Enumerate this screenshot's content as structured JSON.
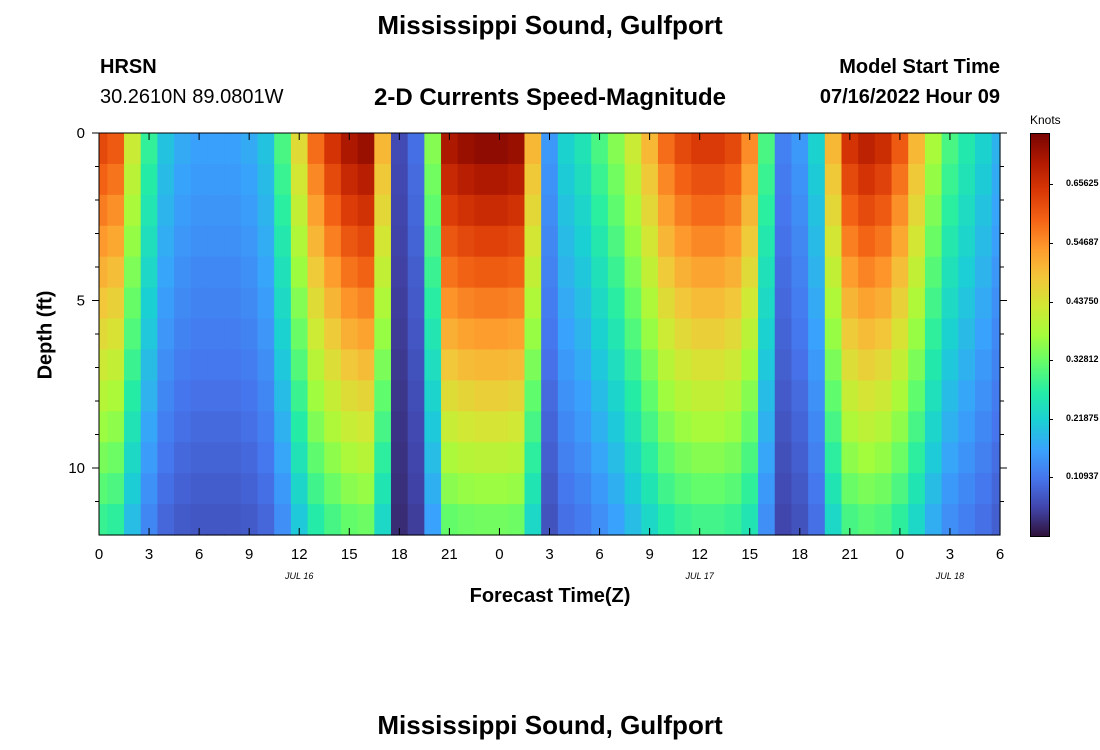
{
  "header": {
    "title": "Mississippi Sound, Gulfport",
    "station": "HRSN",
    "coords": "30.2610N  89.0801W",
    "subtitle": "2-D Currents Speed-Magnitude",
    "model_label": "Model Start Time",
    "model_time": "07/16/2022 Hour 09"
  },
  "footer": {
    "title": "Mississippi Sound, Gulfport"
  },
  "colorbar": {
    "unit": "Knots",
    "ticks": [
      {
        "value": 0.65625,
        "label": "0.65625"
      },
      {
        "value": 0.54687,
        "label": "0.54687"
      },
      {
        "value": 0.4375,
        "label": "0.43750"
      },
      {
        "value": 0.32812,
        "label": "0.32812"
      },
      {
        "value": 0.21875,
        "label": "0.21875"
      },
      {
        "value": 0.10937,
        "label": "0.10937"
      }
    ],
    "range": [
      0,
      0.75
    ],
    "colors": [
      "#30123b",
      "#4145ab",
      "#4675ed",
      "#39a2fc",
      "#1bcfd4",
      "#24eca6",
      "#61fc6c",
      "#a4fc3b",
      "#d1e834",
      "#f3c63a",
      "#fe9b2d",
      "#f36315",
      "#d93806",
      "#b11901",
      "#7a0402"
    ]
  },
  "chart_data": {
    "type": "heatmap",
    "title": "2-D Currents Speed-Magnitude",
    "xlabel": "Forecast Time(Z)",
    "ylabel": "Depth (ft)",
    "x_ticks": [
      "0",
      "3",
      "6",
      "9",
      "12",
      "15",
      "18",
      "21",
      "0",
      "3",
      "6",
      "9",
      "12",
      "15",
      "18",
      "21",
      "0",
      "3",
      "6"
    ],
    "y_ticks": [
      "0",
      "5",
      "10"
    ],
    "date_labels": [
      {
        "label": "JUL 16",
        "tick_index": 4
      },
      {
        "label": "JUL 17",
        "tick_index": 12
      },
      {
        "label": "JUL 18",
        "tick_index": 17
      }
    ],
    "ylim": [
      0,
      12
    ],
    "zlabel": "Knots",
    "zlim": [
      0,
      0.75
    ],
    "grid": false,
    "hours_from_start": [
      0,
      1,
      2,
      3,
      4,
      5,
      6,
      7,
      8,
      9,
      10,
      11,
      12,
      13,
      14,
      15,
      16,
      17,
      18,
      19,
      20,
      21,
      22,
      23,
      24,
      25,
      26,
      27,
      28,
      29,
      30,
      31,
      32,
      33,
      34,
      35,
      36,
      37,
      38,
      39,
      40,
      41,
      42,
      43,
      44,
      45,
      46,
      47,
      48,
      49,
      50,
      51,
      52,
      53,
      54
    ],
    "depths_ft": [
      0,
      1,
      2,
      3,
      4,
      5,
      6,
      7,
      8,
      9,
      10,
      11,
      12
    ],
    "surface_speed_knots": [
      0.62,
      0.6,
      0.42,
      0.28,
      0.2,
      0.17,
      0.16,
      0.16,
      0.16,
      0.17,
      0.2,
      0.3,
      0.45,
      0.58,
      0.65,
      0.7,
      0.72,
      0.5,
      0.06,
      0.1,
      0.35,
      0.7,
      0.72,
      0.73,
      0.73,
      0.72,
      0.5,
      0.15,
      0.22,
      0.25,
      0.3,
      0.35,
      0.42,
      0.5,
      0.58,
      0.62,
      0.64,
      0.64,
      0.62,
      0.55,
      0.3,
      0.12,
      0.15,
      0.22,
      0.5,
      0.65,
      0.68,
      0.66,
      0.6,
      0.5,
      0.38,
      0.3,
      0.26,
      0.22,
      0.18
    ],
    "depth_profile_note": "speed decreases with depth"
  }
}
